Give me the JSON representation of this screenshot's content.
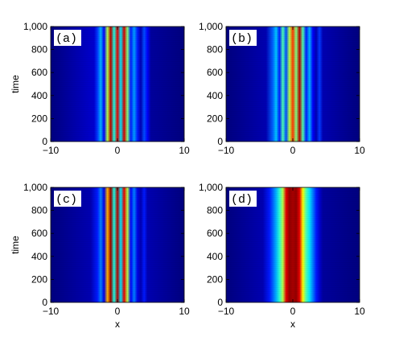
{
  "chart_data": [
    {
      "type": "heatmap",
      "panel_label": "(a)",
      "xlabel": "",
      "ylabel": "time",
      "xlim": [
        -10,
        10
      ],
      "ylim": [
        0,
        1000
      ],
      "xticks": [
        "-10",
        "0",
        "10"
      ],
      "yticks": [
        "0",
        "200",
        "400",
        "600",
        "800",
        "1,000"
      ],
      "colormap": "jet",
      "profile_x": [
        -3.5,
        -3.0,
        -2.5,
        -2.0,
        -1.5,
        -1.0,
        -0.5,
        0.0,
        0.5,
        1.0,
        1.5,
        2.0,
        2.5,
        3.0,
        3.5,
        4.0,
        4.5,
        5.0
      ],
      "profile_level": [
        0.08,
        0.18,
        0.3,
        0.12,
        0.55,
        0.95,
        0.4,
        0.9,
        0.35,
        0.92,
        0.5,
        0.15,
        0.28,
        0.15,
        0.05,
        0.2,
        0.12,
        0.03
      ]
    },
    {
      "type": "heatmap",
      "panel_label": "(b)",
      "xlabel": "",
      "ylabel": "",
      "xlim": [
        -10,
        10
      ],
      "ylim": [
        0,
        1000
      ],
      "xticks": [
        "-10",
        "0",
        "10"
      ],
      "yticks": [
        "0",
        "200",
        "400",
        "600",
        "800",
        "1,000"
      ],
      "colormap": "jet",
      "profile_x": [
        -4.0,
        -3.0,
        -2.5,
        -2.0,
        -1.5,
        -1.0,
        -0.5,
        0.0,
        0.5,
        1.0,
        1.5,
        2.0,
        2.5,
        3.0,
        3.5,
        4.0,
        4.5
      ],
      "profile_level": [
        0.05,
        0.22,
        0.32,
        0.15,
        0.45,
        0.2,
        0.55,
        0.82,
        0.5,
        0.95,
        0.45,
        0.15,
        0.3,
        0.12,
        0.05,
        0.18,
        0.05
      ]
    },
    {
      "type": "heatmap",
      "panel_label": "(c)",
      "xlabel": "x",
      "ylabel": "time",
      "xlim": [
        -10,
        10
      ],
      "ylim": [
        0,
        1000
      ],
      "xticks": [
        "-10",
        "0",
        "10"
      ],
      "yticks": [
        "0",
        "200",
        "400",
        "600",
        "800",
        "1,000"
      ],
      "colormap": "jet",
      "profile_x": [
        -4.0,
        -3.0,
        -2.5,
        -2.0,
        -1.5,
        -1.0,
        -0.5,
        0.0,
        0.5,
        1.0,
        1.5,
        2.0,
        2.5,
        3.0,
        3.5,
        4.0,
        4.5
      ],
      "profile_level": [
        0.05,
        0.15,
        0.25,
        0.1,
        0.7,
        0.98,
        0.4,
        0.95,
        0.35,
        0.9,
        0.55,
        0.12,
        0.25,
        0.1,
        0.05,
        0.15,
        0.05
      ]
    },
    {
      "type": "heatmap",
      "panel_label": "(d)",
      "xlabel": "x",
      "ylabel": "",
      "xlim": [
        -10,
        10
      ],
      "ylim": [
        0,
        1000
      ],
      "xticks": [
        "-10",
        "0",
        "10"
      ],
      "yticks": [
        "0",
        "200",
        "400",
        "600",
        "800",
        "1,000"
      ],
      "colormap": "jet",
      "profile_x": [
        -4.5,
        -3.5,
        -3.0,
        -2.5,
        -2.0,
        -1.5,
        -1.0,
        -0.5,
        0.0,
        0.5,
        1.0,
        1.5,
        2.0,
        2.5,
        3.0,
        3.5,
        4.0,
        4.5
      ],
      "profile_level": [
        0.05,
        0.15,
        0.22,
        0.3,
        0.42,
        0.55,
        0.9,
        0.98,
        0.96,
        0.98,
        0.9,
        0.62,
        0.45,
        0.35,
        0.25,
        0.15,
        0.08,
        0.03
      ]
    }
  ]
}
